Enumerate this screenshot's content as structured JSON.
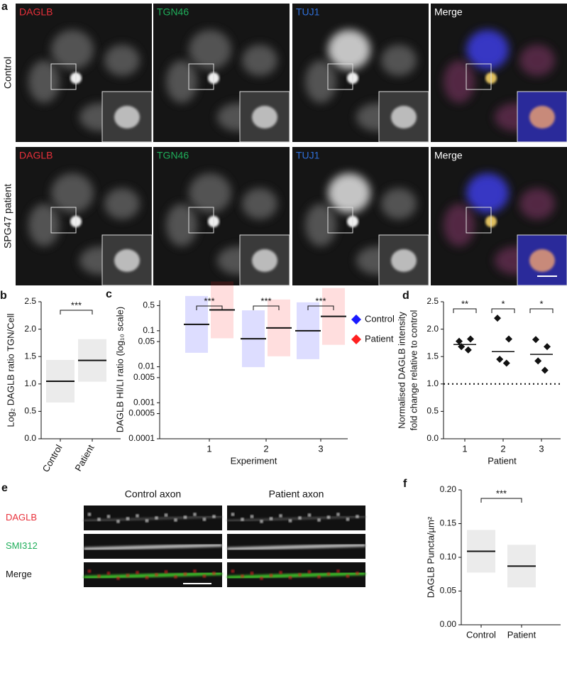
{
  "figure": {
    "panel_a": {
      "letter": "a",
      "rows": [
        {
          "label": "Control",
          "channels": [
            {
              "name": "DAGLB",
              "color": "#e8303a"
            },
            {
              "name": "TGN46",
              "color": "#1fae5a"
            },
            {
              "name": "TUJ1",
              "color": "#2f6fd8"
            },
            {
              "name": "Merge",
              "color": "#ffffff"
            }
          ]
        },
        {
          "label": "SPG47 patient",
          "channels": [
            {
              "name": "DAGLB",
              "color": "#e8303a"
            },
            {
              "name": "TGN46",
              "color": "#1fae5a"
            },
            {
              "name": "TUJ1",
              "color": "#2f6fd8"
            },
            {
              "name": "Merge",
              "color": "#ffffff"
            }
          ]
        }
      ]
    },
    "panel_e": {
      "letter": "e",
      "columns": [
        "Control axon",
        "Patient axon"
      ],
      "rows": [
        {
          "name": "DAGLB",
          "color": "#e8303a"
        },
        {
          "name": "SMI312",
          "color": "#1fae5a"
        },
        {
          "name": "Merge",
          "color": "#111111"
        }
      ]
    }
  },
  "chart_data": [
    {
      "type": "scatter",
      "letter": "b",
      "ylabel": "Log₂ DAGLB ratio TGN/Cell",
      "categories": [
        "Control",
        "Patient"
      ],
      "medians": [
        1.05,
        1.43
      ],
      "significance": "***",
      "ylim": [
        0,
        2.5
      ],
      "yticks": [
        {
          "value": 0,
          "label": "0.0"
        },
        {
          "value": 0.5,
          "label": "0.5"
        },
        {
          "value": 1,
          "label": "1.0"
        },
        {
          "value": 1.5,
          "label": "1.5"
        },
        {
          "value": 2,
          "label": "2.0"
        },
        {
          "value": 2.5,
          "label": "2.5"
        }
      ]
    },
    {
      "type": "scatter",
      "letter": "c",
      "ylabel": "DAGLB HI/LI ratio (log₁₀ scale)",
      "xlabel": "Experiment",
      "log_scale": true,
      "categories": [
        "1",
        "2",
        "3"
      ],
      "significance": [
        "***",
        "***",
        "***"
      ],
      "series": [
        {
          "name": "Control",
          "color": "#1a1aff",
          "medians": [
            0.15,
            0.06,
            0.1
          ]
        },
        {
          "name": "Patient",
          "color": "#ff2020",
          "medians": [
            0.38,
            0.12,
            0.25
          ]
        }
      ],
      "ylim": [
        0.0001,
        0.7
      ],
      "yticks": [
        0.0001,
        0.0005,
        0.001,
        0.005,
        0.01,
        0.05,
        0.1,
        0.5
      ]
    },
    {
      "type": "strip",
      "letter": "d",
      "ylabel": [
        "Normalised DAGLB intensity",
        "fold change relative to control"
      ],
      "xlabel": "Patient",
      "categories": [
        "1",
        "2",
        "3"
      ],
      "values": [
        [
          1.78,
          1.82,
          1.68,
          1.62
        ],
        [
          2.2,
          1.82,
          1.45,
          1.38
        ],
        [
          1.81,
          1.68,
          1.42,
          1.25
        ]
      ],
      "medians": [
        1.72,
        1.59,
        1.54
      ],
      "reference_line": 1,
      "significance": [
        "**",
        "*",
        "*"
      ],
      "ylim": [
        0,
        2.5
      ],
      "yticks": [
        {
          "value": 0,
          "label": "0.0"
        },
        {
          "value": 0.5,
          "label": "0.5"
        },
        {
          "value": 1,
          "label": "1.0"
        },
        {
          "value": 1.5,
          "label": "1.5"
        },
        {
          "value": 2,
          "label": "2.0"
        },
        {
          "value": 2.5,
          "label": "2.5"
        }
      ]
    },
    {
      "type": "scatter",
      "letter": "f",
      "ylabel": "DAGLB Puncta/µm²",
      "categories": [
        "Control",
        "Patient"
      ],
      "medians": [
        0.109,
        0.087
      ],
      "significance": "***",
      "ylim": [
        0,
        0.2
      ],
      "yticks": [
        {
          "value": 0,
          "label": "0.00"
        },
        {
          "value": 0.05,
          "label": "0.05"
        },
        {
          "value": 0.1,
          "label": "0.10"
        },
        {
          "value": 0.15,
          "label": "0.15"
        },
        {
          "value": 0.2,
          "label": "0.20"
        }
      ]
    }
  ]
}
